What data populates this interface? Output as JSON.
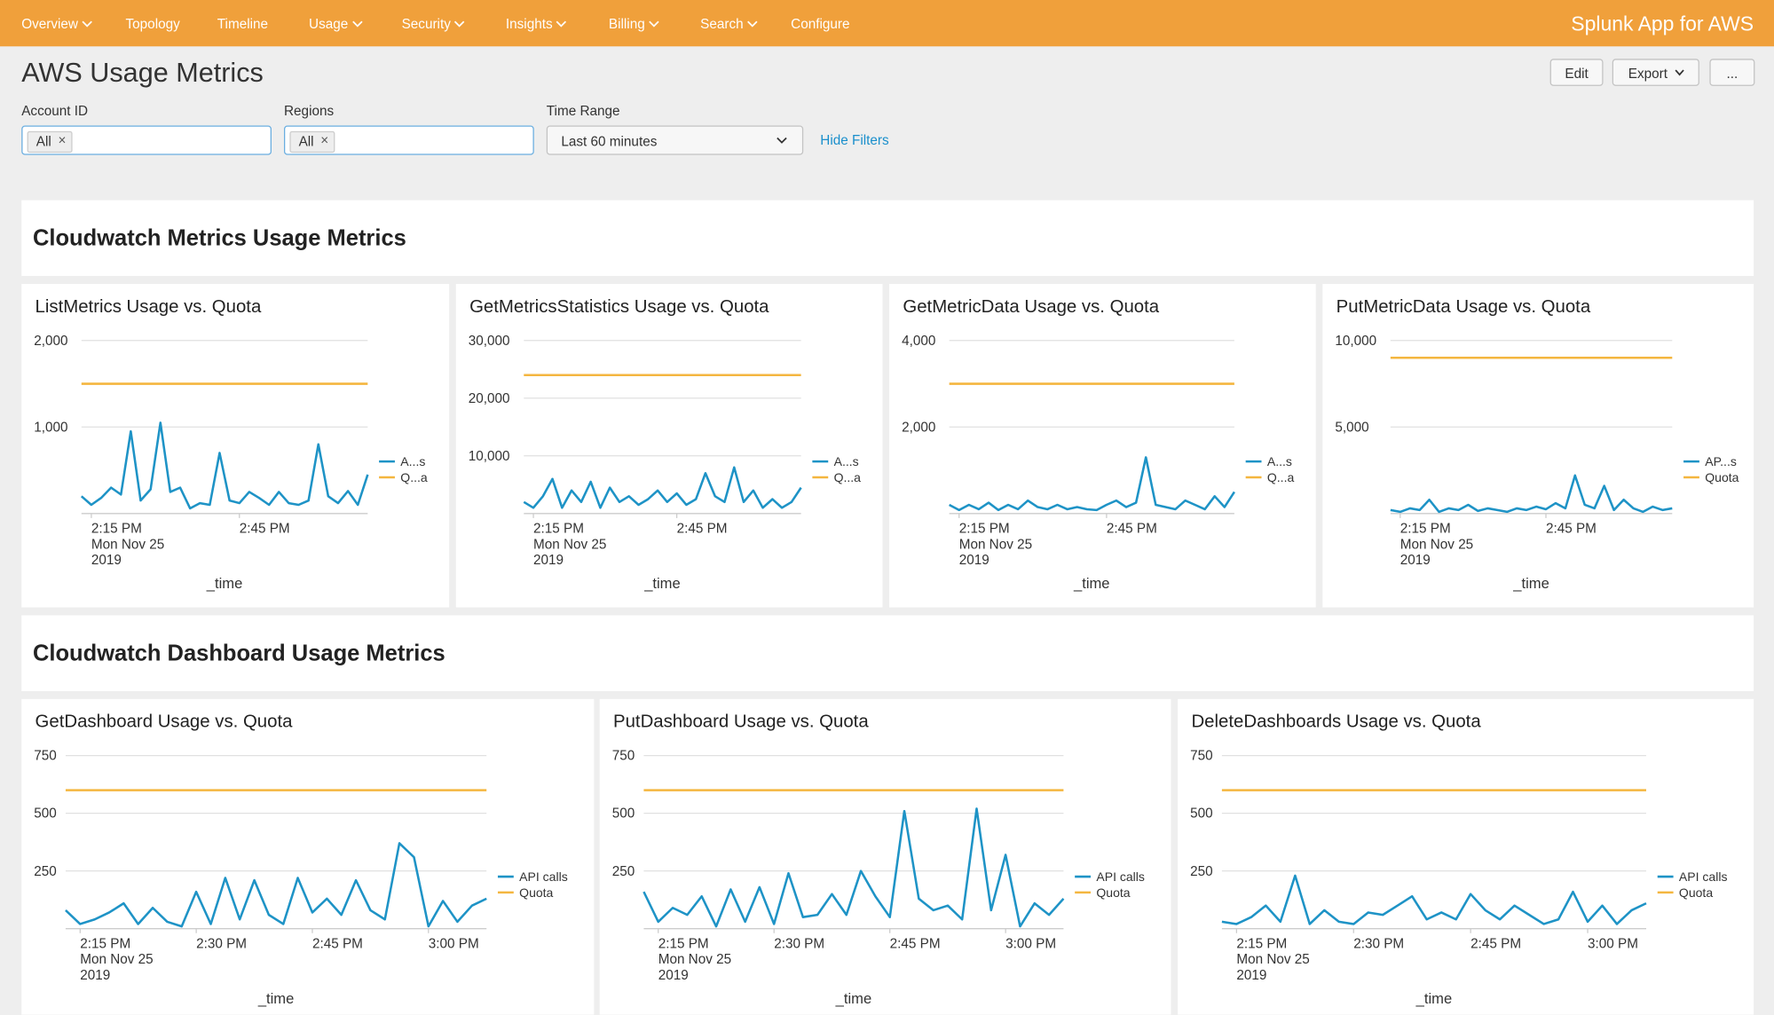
{
  "nav": {
    "items": [
      {
        "label": "Overview",
        "dropdown": true
      },
      {
        "label": "Topology",
        "dropdown": false
      },
      {
        "label": "Timeline",
        "dropdown": false
      },
      {
        "label": "Usage",
        "dropdown": true
      },
      {
        "label": "Security",
        "dropdown": true
      },
      {
        "label": "Insights",
        "dropdown": true
      },
      {
        "label": "Billing",
        "dropdown": true
      },
      {
        "label": "Search",
        "dropdown": true
      },
      {
        "label": "Configure",
        "dropdown": false
      }
    ],
    "app_name": "Splunk App for AWS"
  },
  "header": {
    "title": "AWS Usage Metrics",
    "buttons": [
      "Edit",
      "Export",
      "..."
    ]
  },
  "filters": {
    "account": {
      "label": "Account ID",
      "token": "All"
    },
    "regions": {
      "label": "Regions",
      "token": "All"
    },
    "time_range": {
      "label": "Time Range",
      "value": "Last 60 minutes"
    },
    "hide_link": "Hide Filters"
  },
  "sections": [
    {
      "title": "Cloudwatch Metrics Usage Metrics",
      "panels": [
        {
          "chart": {
            "type": "line",
            "title": "ListMetrics Usage vs. Quota",
            "xlabel": "_time",
            "xlim": [
              0,
              29
            ],
            "xticks": [
              {
                "value": 1,
                "label": "2:15 PM"
              },
              {
                "value": 16,
                "label": "2:45 PM"
              }
            ],
            "date_lines": [
              "Mon Nov 25",
              "2019"
            ],
            "ylim": [
              0,
              2000
            ],
            "yticks": [
              {
                "value": 1000,
                "label": "1,000"
              },
              {
                "value": 2000,
                "label": "2,000"
              }
            ],
            "grid": true,
            "series": [
              {
                "name": "A...s",
                "color": "#1e93c6",
                "values": [
                  200,
                  100,
                  180,
                  300,
                  220,
                  950,
                  150,
                  280,
                  1050,
                  250,
                  300,
                  60,
                  120,
                  100,
                  700,
                  150,
                  120,
                  250,
                  180,
                  100,
                  250,
                  120,
                  100,
                  150,
                  800,
                  200,
                  120,
                  260,
                  100,
                  450
                ]
              },
              {
                "name": "Q...a",
                "color": "#f4b63f",
                "values": [
                  1500,
                  1500,
                  1500,
                  1500,
                  1500,
                  1500,
                  1500,
                  1500,
                  1500,
                  1500,
                  1500,
                  1500,
                  1500,
                  1500,
                  1500,
                  1500,
                  1500,
                  1500,
                  1500,
                  1500,
                  1500,
                  1500,
                  1500,
                  1500,
                  1500,
                  1500,
                  1500,
                  1500,
                  1500,
                  1500
                ]
              }
            ]
          }
        },
        {
          "chart": {
            "type": "line",
            "title": "GetMetricsStatistics Usage vs. Quota",
            "xlabel": "_time",
            "xlim": [
              0,
              29
            ],
            "xticks": [
              {
                "value": 1,
                "label": "2:15 PM"
              },
              {
                "value": 16,
                "label": "2:45 PM"
              }
            ],
            "date_lines": [
              "Mon Nov 25",
              "2019"
            ],
            "ylim": [
              0,
              30000
            ],
            "yticks": [
              {
                "value": 10000,
                "label": "10,000"
              },
              {
                "value": 20000,
                "label": "20,000"
              },
              {
                "value": 30000,
                "label": "30,000"
              }
            ],
            "grid": true,
            "series": [
              {
                "name": "A...s",
                "color": "#1e93c6",
                "values": [
                  2000,
                  1000,
                  3000,
                  6000,
                  1000,
                  4000,
                  2000,
                  5500,
                  1000,
                  4500,
                  2000,
                  3000,
                  1500,
                  2500,
                  4000,
                  2000,
                  3500,
                  1500,
                  2500,
                  7000,
                  3000,
                  2000,
                  8000,
                  2000,
                  4000,
                  1000,
                  2500,
                  1000,
                  2000,
                  4500
                ]
              },
              {
                "name": "Q...a",
                "color": "#f4b63f",
                "values": [
                  24000,
                  24000,
                  24000,
                  24000,
                  24000,
                  24000,
                  24000,
                  24000,
                  24000,
                  24000,
                  24000,
                  24000,
                  24000,
                  24000,
                  24000,
                  24000,
                  24000,
                  24000,
                  24000,
                  24000,
                  24000,
                  24000,
                  24000,
                  24000,
                  24000,
                  24000,
                  24000,
                  24000,
                  24000,
                  24000
                ]
              }
            ]
          }
        },
        {
          "chart": {
            "type": "line",
            "title": "GetMetricData Usage vs. Quota",
            "xlabel": "_time",
            "xlim": [
              0,
              29
            ],
            "xticks": [
              {
                "value": 1,
                "label": "2:15 PM"
              },
              {
                "value": 16,
                "label": "2:45 PM"
              }
            ],
            "date_lines": [
              "Mon Nov 25",
              "2019"
            ],
            "ylim": [
              0,
              4000
            ],
            "yticks": [
              {
                "value": 2000,
                "label": "2,000"
              },
              {
                "value": 4000,
                "label": "4,000"
              }
            ],
            "grid": true,
            "series": [
              {
                "name": "A...s",
                "color": "#1e93c6",
                "values": [
                  200,
                  80,
                  200,
                  100,
                  250,
                  80,
                  200,
                  100,
                  300,
                  150,
                  100,
                  200,
                  100,
                  150,
                  100,
                  80,
                  200,
                  300,
                  150,
                  250,
                  1300,
                  200,
                  150,
                  100,
                  300,
                  200,
                  100,
                  400,
                  150,
                  500
                ]
              },
              {
                "name": "Q...a",
                "color": "#f4b63f",
                "values": [
                  3000,
                  3000,
                  3000,
                  3000,
                  3000,
                  3000,
                  3000,
                  3000,
                  3000,
                  3000,
                  3000,
                  3000,
                  3000,
                  3000,
                  3000,
                  3000,
                  3000,
                  3000,
                  3000,
                  3000,
                  3000,
                  3000,
                  3000,
                  3000,
                  3000,
                  3000,
                  3000,
                  3000,
                  3000,
                  3000
                ]
              }
            ]
          }
        },
        {
          "chart": {
            "type": "line",
            "title": "PutMetricData Usage vs. Quota",
            "xlabel": "_time",
            "xlim": [
              0,
              29
            ],
            "xticks": [
              {
                "value": 1,
                "label": "2:15 PM"
              },
              {
                "value": 16,
                "label": "2:45 PM"
              }
            ],
            "date_lines": [
              "Mon Nov 25",
              "2019"
            ],
            "ylim": [
              0,
              10000
            ],
            "yticks": [
              {
                "value": 5000,
                "label": "5,000"
              },
              {
                "value": 10000,
                "label": "10,000"
              }
            ],
            "grid": true,
            "series": [
              {
                "name": "AP...s",
                "color": "#1e93c6",
                "values": [
                  200,
                  100,
                  300,
                  200,
                  800,
                  100,
                  300,
                  200,
                  500,
                  150,
                  300,
                  200,
                  100,
                  300,
                  200,
                  400,
                  250,
                  600,
                  300,
                  2200,
                  500,
                  300,
                  1600,
                  200,
                  800,
                  300,
                  100,
                  400,
                  200,
                  300
                ]
              },
              {
                "name": "Quota",
                "color": "#f4b63f",
                "values": [
                  9000,
                  9000,
                  9000,
                  9000,
                  9000,
                  9000,
                  9000,
                  9000,
                  9000,
                  9000,
                  9000,
                  9000,
                  9000,
                  9000,
                  9000,
                  9000,
                  9000,
                  9000,
                  9000,
                  9000,
                  9000,
                  9000,
                  9000,
                  9000,
                  9000,
                  9000,
                  9000,
                  9000,
                  9000,
                  9000
                ]
              }
            ]
          }
        }
      ]
    },
    {
      "title": "Cloudwatch Dashboard Usage Metrics",
      "panels": [
        {
          "chart": {
            "type": "line",
            "title": "GetDashboard Usage vs. Quota",
            "xlabel": "_time",
            "xlim": [
              0,
              29
            ],
            "xticks": [
              {
                "value": 1,
                "label": "2:15 PM"
              },
              {
                "value": 9,
                "label": "2:30 PM"
              },
              {
                "value": 17,
                "label": "2:45 PM"
              },
              {
                "value": 25,
                "label": "3:00 PM"
              }
            ],
            "date_lines": [
              "Mon Nov 25",
              "2019"
            ],
            "ylim": [
              0,
              750
            ],
            "yticks": [
              250,
              500,
              750
            ],
            "grid": true,
            "series": [
              {
                "name": "API calls",
                "color": "#1e93c6",
                "values": [
                  80,
                  20,
                  40,
                  70,
                  110,
                  20,
                  90,
                  30,
                  10,
                  160,
                  20,
                  220,
                  40,
                  210,
                  60,
                  20,
                  220,
                  70,
                  130,
                  60,
                  210,
                  80,
                  40,
                  370,
                  310,
                  10,
                  120,
                  30,
                  100,
                  130
                ]
              },
              {
                "name": "Quota",
                "color": "#f4b63f",
                "values": [
                  600,
                  600,
                  600,
                  600,
                  600,
                  600,
                  600,
                  600,
                  600,
                  600,
                  600,
                  600,
                  600,
                  600,
                  600,
                  600,
                  600,
                  600,
                  600,
                  600,
                  600,
                  600,
                  600,
                  600,
                  600,
                  600,
                  600,
                  600,
                  600,
                  600
                ]
              }
            ]
          }
        },
        {
          "chart": {
            "type": "line",
            "title": "PutDashboard Usage vs. Quota",
            "xlabel": "_time",
            "xlim": [
              0,
              29
            ],
            "xticks": [
              {
                "value": 1,
                "label": "2:15 PM"
              },
              {
                "value": 9,
                "label": "2:30 PM"
              },
              {
                "value": 17,
                "label": "2:45 PM"
              },
              {
                "value": 25,
                "label": "3:00 PM"
              }
            ],
            "date_lines": [
              "Mon Nov 25",
              "2019"
            ],
            "ylim": [
              0,
              750
            ],
            "yticks": [
              250,
              500,
              750
            ],
            "grid": true,
            "series": [
              {
                "name": "API calls",
                "color": "#1e93c6",
                "values": [
                  160,
                  30,
                  90,
                  60,
                  140,
                  10,
                  170,
                  30,
                  180,
                  20,
                  240,
                  50,
                  60,
                  150,
                  60,
                  250,
                  140,
                  50,
                  510,
                  130,
                  80,
                  100,
                  40,
                  520,
                  80,
                  320,
                  10,
                  110,
                  60,
                  130
                ]
              },
              {
                "name": "Quota",
                "color": "#f4b63f",
                "values": [
                  600,
                  600,
                  600,
                  600,
                  600,
                  600,
                  600,
                  600,
                  600,
                  600,
                  600,
                  600,
                  600,
                  600,
                  600,
                  600,
                  600,
                  600,
                  600,
                  600,
                  600,
                  600,
                  600,
                  600,
                  600,
                  600,
                  600,
                  600,
                  600,
                  600
                ]
              }
            ]
          }
        },
        {
          "chart": {
            "type": "line",
            "title": "DeleteDashboards Usage vs. Quota",
            "xlabel": "_time",
            "xlim": [
              0,
              29
            ],
            "xticks": [
              {
                "value": 1,
                "label": "2:15 PM"
              },
              {
                "value": 9,
                "label": "2:30 PM"
              },
              {
                "value": 17,
                "label": "2:45 PM"
              },
              {
                "value": 25,
                "label": "3:00 PM"
              }
            ],
            "date_lines": [
              "Mon Nov 25",
              "2019"
            ],
            "ylim": [
              0,
              750
            ],
            "yticks": [
              250,
              500,
              750
            ],
            "grid": true,
            "series": [
              {
                "name": "API calls",
                "color": "#1e93c6",
                "values": [
                  30,
                  20,
                  50,
                  100,
                  30,
                  230,
                  20,
                  80,
                  30,
                  20,
                  70,
                  60,
                  100,
                  140,
                  40,
                  70,
                  40,
                  150,
                  80,
                  40,
                  100,
                  60,
                  20,
                  40,
                  160,
                  30,
                  100,
                  20,
                  80,
                  110
                ]
              },
              {
                "name": "Quota",
                "color": "#f4b63f",
                "values": [
                  600,
                  600,
                  600,
                  600,
                  600,
                  600,
                  600,
                  600,
                  600,
                  600,
                  600,
                  600,
                  600,
                  600,
                  600,
                  600,
                  600,
                  600,
                  600,
                  600,
                  600,
                  600,
                  600,
                  600,
                  600,
                  600,
                  600,
                  600,
                  600,
                  600
                ]
              }
            ]
          }
        }
      ]
    }
  ]
}
